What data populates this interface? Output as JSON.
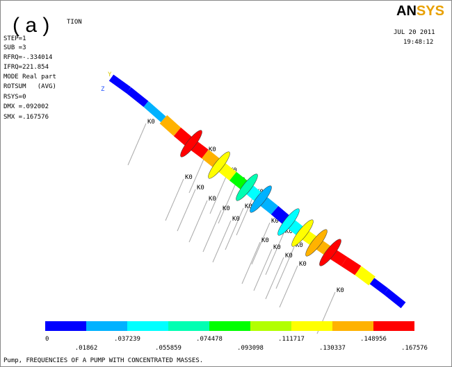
{
  "panel_label": "( a )",
  "header_fragment": "TION",
  "info": {
    "step": "STEP=1",
    "sub": "SUB =3",
    "rfrq": "RFRQ=-.334014",
    "ifrq": "IFRQ=221.854",
    "mode": "MODE Real part",
    "rotsum": "ROTSUM   (AVG)",
    "rsys": "RSYS=0",
    "dmx": "DMX =.092002",
    "smx": "SMX =.167576"
  },
  "logo": {
    "an": "AN",
    "sys": "SYS"
  },
  "date": "JUL 20 2011",
  "time": "19:48:12",
  "triad": {
    "y": "Y",
    "z": "Z"
  },
  "mass_labels": [
    "K0",
    "K0",
    "K0",
    "K0",
    "K0",
    "K0",
    "K0",
    "K0",
    "K0",
    "K0",
    "K0",
    "K0",
    "K0",
    "K0",
    "K0",
    "K0",
    "K0",
    "K0",
    "K0"
  ],
  "legend": {
    "colors": [
      "#0000ff",
      "#00b2ff",
      "#00ffff",
      "#00ffb2",
      "#00ff00",
      "#b2ff00",
      "#ffff00",
      "#ffb200",
      "#ff0000"
    ],
    "labels": [
      "0",
      ".01862",
      ".037239",
      ".055859",
      ".074478",
      ".093098",
      ".111717",
      ".130337",
      ".148956",
      ".167576"
    ]
  },
  "footer": "Pump, FREQUENCIES OF A PUMP WITH CONCENTRATED MASSES."
}
